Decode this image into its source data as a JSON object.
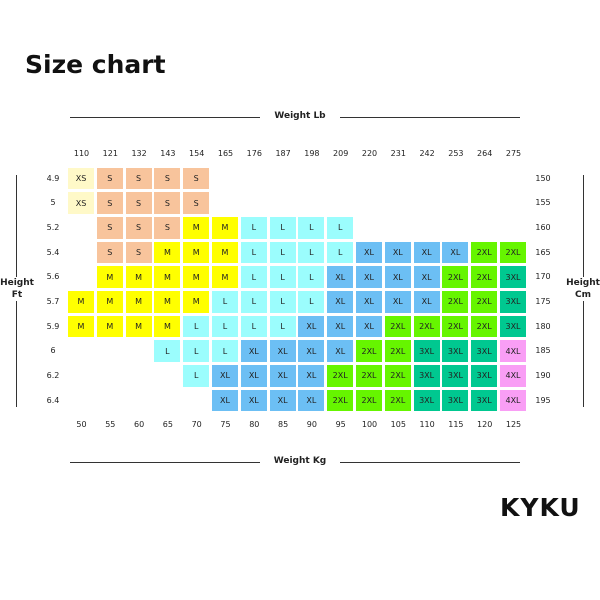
{
  "title": "Size chart",
  "brand": "KYKU",
  "chart_data": {
    "type": "table",
    "top_axis_label": "Weight Lb",
    "bottom_axis_label": "Weight Kg",
    "left_axis_label": [
      "Height",
      "Ft"
    ],
    "right_axis_label": [
      "Height",
      "Cm"
    ],
    "weight_lb": [
      "110",
      "121",
      "132",
      "143",
      "154",
      "165",
      "176",
      "187",
      "198",
      "209",
      "220",
      "231",
      "242",
      "253",
      "264",
      "275"
    ],
    "weight_kg": [
      "50",
      "55",
      "60",
      "65",
      "70",
      "75",
      "80",
      "85",
      "90",
      "95",
      "100",
      "105",
      "110",
      "115",
      "120",
      "125"
    ],
    "height_ft": [
      "4.9",
      "5",
      "5.2",
      "5.4",
      "5.6",
      "5.7",
      "5.9",
      "6",
      "6.2",
      "6.4"
    ],
    "height_cm": [
      "150",
      "155",
      "160",
      "165",
      "170",
      "175",
      "180",
      "185",
      "190",
      "195"
    ],
    "rows": [
      [
        "XS",
        "S",
        "S",
        "S",
        "S",
        "",
        "",
        "",
        "",
        "",
        "",
        "",
        "",
        "",
        "",
        ""
      ],
      [
        "XS",
        "S",
        "S",
        "S",
        "S",
        "",
        "",
        "",
        "",
        "",
        "",
        "",
        "",
        "",
        "",
        ""
      ],
      [
        "",
        "S",
        "S",
        "S",
        "M",
        "M",
        "L",
        "L",
        "L",
        "L",
        "",
        "",
        "",
        "",
        "",
        ""
      ],
      [
        "",
        "S",
        "S",
        "M",
        "M",
        "M",
        "L",
        "L",
        "L",
        "L",
        "XL",
        "XL",
        "XL",
        "XL",
        "2XL",
        "2XL"
      ],
      [
        "",
        "M",
        "M",
        "M",
        "M",
        "M",
        "L",
        "L",
        "L",
        "XL",
        "XL",
        "XL",
        "XL",
        "2XL",
        "2XL",
        "3XL"
      ],
      [
        "M",
        "M",
        "M",
        "M",
        "M",
        "L",
        "L",
        "L",
        "L",
        "XL",
        "XL",
        "XL",
        "XL",
        "2XL",
        "2XL",
        "3XL"
      ],
      [
        "M",
        "M",
        "M",
        "M",
        "L",
        "L",
        "L",
        "L",
        "XL",
        "XL",
        "XL",
        "2XL",
        "2XL",
        "2XL",
        "2XL",
        "3XL"
      ],
      [
        "",
        "",
        "",
        "L",
        "L",
        "L",
        "XL",
        "XL",
        "XL",
        "XL",
        "2XL",
        "2XL",
        "3XL",
        "3XL",
        "3XL",
        "4XL"
      ],
      [
        "",
        "",
        "",
        "",
        "L",
        "XL",
        "XL",
        "XL",
        "XL",
        "2XL",
        "2XL",
        "2XL",
        "3XL",
        "3XL",
        "3XL",
        "4XL"
      ],
      [
        "",
        "",
        "",
        "",
        "",
        "XL",
        "XL",
        "XL",
        "XL",
        "2XL",
        "2XL",
        "2XL",
        "3XL",
        "3XL",
        "3XL",
        "4XL"
      ]
    ],
    "size_colors": {
      "XS": "#fff9c8",
      "S": "#f8c49c",
      "M": "#ffff00",
      "L": "#9bfdfd",
      "XL": "#6cbff4",
      "2XL": "#66f500",
      "3XL": "#00c890",
      "4XL": "#f99ef5"
    }
  }
}
